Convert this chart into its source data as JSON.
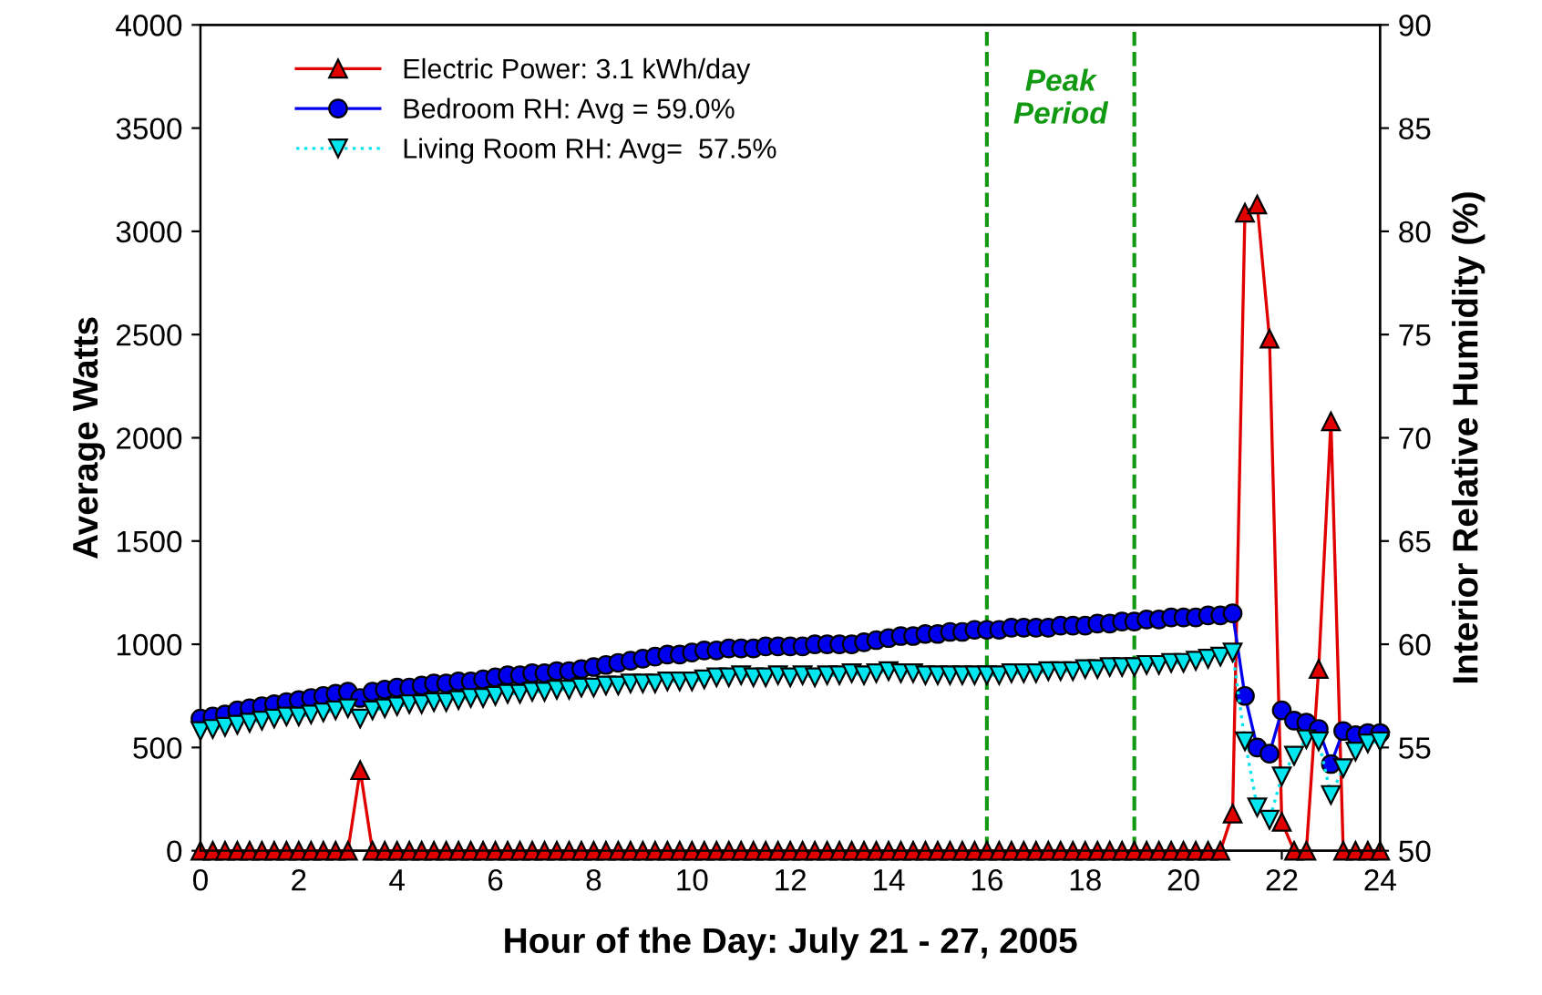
{
  "chart_data": {
    "type": "line",
    "xlabel": "Hour of the Day: July 21 - 27, 2005",
    "ylabel": "Average Watts",
    "y2label": "Interior Relative Humidity (%)",
    "x": [
      0,
      0.25,
      0.5,
      0.75,
      1,
      1.25,
      1.5,
      1.75,
      2,
      2.25,
      2.5,
      2.75,
      3,
      3.25,
      3.5,
      3.75,
      4,
      4.25,
      4.5,
      4.75,
      5,
      5.25,
      5.5,
      5.75,
      6,
      6.25,
      6.5,
      6.75,
      7,
      7.25,
      7.5,
      7.75,
      8,
      8.25,
      8.5,
      8.75,
      9,
      9.25,
      9.5,
      9.75,
      10,
      10.25,
      10.5,
      10.75,
      11,
      11.25,
      11.5,
      11.75,
      12,
      12.25,
      12.5,
      12.75,
      13,
      13.25,
      13.5,
      13.75,
      14,
      14.25,
      14.5,
      14.75,
      15,
      15.25,
      15.5,
      15.75,
      16,
      16.25,
      16.5,
      16.75,
      17,
      17.25,
      17.5,
      17.75,
      18,
      18.25,
      18.5,
      18.75,
      19,
      19.25,
      19.5,
      19.75,
      20,
      20.25,
      20.5,
      20.75,
      21,
      21.25,
      21.5,
      21.75,
      22,
      22.25,
      22.5,
      22.75,
      23,
      23.25,
      23.5,
      23.75,
      24
    ],
    "series": [
      {
        "name": "Electric Power: 3.1 kWh/day",
        "color": "#e00000",
        "marker": "triangle",
        "line_style": "solid",
        "values": [
          0,
          0,
          0,
          0,
          0,
          0,
          0,
          0,
          0,
          0,
          0,
          0,
          0,
          390,
          0,
          0,
          0,
          0,
          0,
          0,
          0,
          0,
          0,
          0,
          0,
          0,
          0,
          0,
          0,
          0,
          0,
          0,
          0,
          0,
          0,
          0,
          0,
          0,
          0,
          0,
          0,
          0,
          0,
          0,
          0,
          0,
          0,
          0,
          0,
          0,
          0,
          0,
          0,
          0,
          0,
          0,
          0,
          0,
          0,
          0,
          0,
          0,
          0,
          0,
          0,
          0,
          0,
          0,
          0,
          0,
          0,
          0,
          0,
          0,
          0,
          0,
          0,
          0,
          0,
          0,
          0,
          0,
          0,
          0,
          180,
          3090,
          3130,
          2480,
          140,
          0,
          0,
          880,
          2080,
          0,
          0,
          0,
          0
        ]
      },
      {
        "name": "Bedroom RH: Avg = 59.0%",
        "color": "#0000ee",
        "marker": "circle",
        "line_style": "solid",
        "axis": "y2",
        "values": [
          56.4,
          56.5,
          56.6,
          56.8,
          56.9,
          57.0,
          57.1,
          57.2,
          57.3,
          57.4,
          57.5,
          57.6,
          57.7,
          57.4,
          57.7,
          57.8,
          57.9,
          57.9,
          58.0,
          58.1,
          58.1,
          58.2,
          58.2,
          58.3,
          58.4,
          58.5,
          58.5,
          58.6,
          58.6,
          58.7,
          58.7,
          58.8,
          58.9,
          59.0,
          59.1,
          59.2,
          59.3,
          59.4,
          59.5,
          59.5,
          59.6,
          59.7,
          59.7,
          59.8,
          59.8,
          59.8,
          59.9,
          59.9,
          59.9,
          59.9,
          60.0,
          60.0,
          60.0,
          60.0,
          60.1,
          60.2,
          60.3,
          60.4,
          60.4,
          60.5,
          60.5,
          60.6,
          60.6,
          60.7,
          60.7,
          60.7,
          60.8,
          60.8,
          60.8,
          60.8,
          60.9,
          60.9,
          60.9,
          61.0,
          61.0,
          61.1,
          61.1,
          61.2,
          61.2,
          61.3,
          61.3,
          61.3,
          61.4,
          61.4,
          61.5,
          57.5,
          55.0,
          54.7,
          56.8,
          56.3,
          56.2,
          55.9,
          54.2,
          55.8,
          55.6,
          55.7,
          55.7
        ]
      },
      {
        "name": "Living Room RH: Avg=  57.5%",
        "color": "#00e5ee",
        "marker": "triangle_down",
        "line_style": "dotted",
        "axis": "y2",
        "values": [
          55.8,
          55.9,
          56.0,
          56.1,
          56.2,
          56.3,
          56.4,
          56.5,
          56.5,
          56.6,
          56.7,
          56.8,
          56.9,
          56.4,
          56.8,
          56.9,
          57.0,
          57.1,
          57.1,
          57.2,
          57.2,
          57.3,
          57.4,
          57.4,
          57.5,
          57.6,
          57.6,
          57.7,
          57.7,
          57.8,
          57.8,
          57.9,
          57.9,
          58.0,
          58.0,
          58.1,
          58.1,
          58.1,
          58.2,
          58.2,
          58.2,
          58.3,
          58.4,
          58.4,
          58.5,
          58.4,
          58.4,
          58.5,
          58.4,
          58.5,
          58.4,
          58.5,
          58.5,
          58.6,
          58.5,
          58.6,
          58.7,
          58.6,
          58.6,
          58.5,
          58.5,
          58.5,
          58.5,
          58.5,
          58.5,
          58.5,
          58.6,
          58.6,
          58.6,
          58.7,
          58.7,
          58.7,
          58.8,
          58.8,
          58.9,
          58.9,
          58.9,
          59.0,
          59.0,
          59.1,
          59.1,
          59.2,
          59.3,
          59.4,
          59.6,
          55.3,
          52.1,
          51.5,
          53.6,
          54.6,
          55.4,
          55.3,
          52.7,
          54.0,
          54.8,
          55.2,
          55.3
        ]
      }
    ],
    "xlim": [
      0,
      24
    ],
    "xticks": [
      0,
      2,
      4,
      6,
      8,
      10,
      12,
      14,
      16,
      18,
      20,
      22,
      24
    ],
    "ylim": [
      0,
      4000
    ],
    "yticks": [
      0,
      500,
      1000,
      1500,
      2000,
      2500,
      3000,
      3500,
      4000
    ],
    "y2lim": [
      50,
      90
    ],
    "y2ticks": [
      50,
      55,
      60,
      65,
      70,
      75,
      80,
      85,
      90
    ],
    "ref_lines": [
      {
        "axis": "x",
        "value": 16,
        "color": "#119911",
        "line_style": "dashed"
      },
      {
        "axis": "x",
        "value": 19,
        "color": "#119911",
        "line_style": "dashed"
      }
    ],
    "annotations": [
      "Peak\nPeriod"
    ],
    "legend": "top left",
    "grid": false
  }
}
